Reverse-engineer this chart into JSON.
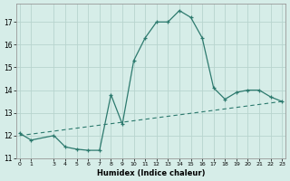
{
  "xlabel": "Humidex (Indice chaleur)",
  "x": [
    0,
    1,
    3,
    4,
    5,
    6,
    7,
    8,
    9,
    10,
    11,
    12,
    13,
    14,
    15,
    16,
    17,
    18,
    19,
    20,
    21,
    22,
    23
  ],
  "y": [
    12.1,
    11.8,
    12.0,
    11.5,
    11.4,
    11.35,
    11.35,
    13.8,
    12.5,
    15.3,
    16.3,
    17.0,
    17.0,
    17.5,
    17.2,
    16.3,
    14.1,
    13.6,
    13.9,
    14.0,
    14.0,
    13.7,
    13.5
  ],
  "line_color": "#2d7a6e",
  "bg_color": "#d6ede8",
  "grid_color": "#b8d4ce",
  "ylim": [
    11,
    17.8
  ],
  "xlim": [
    -0.3,
    23.3
  ],
  "yticks": [
    11,
    12,
    13,
    14,
    15,
    16,
    17
  ],
  "xticks": [
    0,
    1,
    3,
    4,
    5,
    6,
    7,
    8,
    9,
    10,
    11,
    12,
    13,
    14,
    15,
    16,
    17,
    18,
    19,
    20,
    21,
    22,
    23
  ],
  "trend_x": [
    0,
    23
  ],
  "trend_y": [
    12.0,
    13.5
  ]
}
